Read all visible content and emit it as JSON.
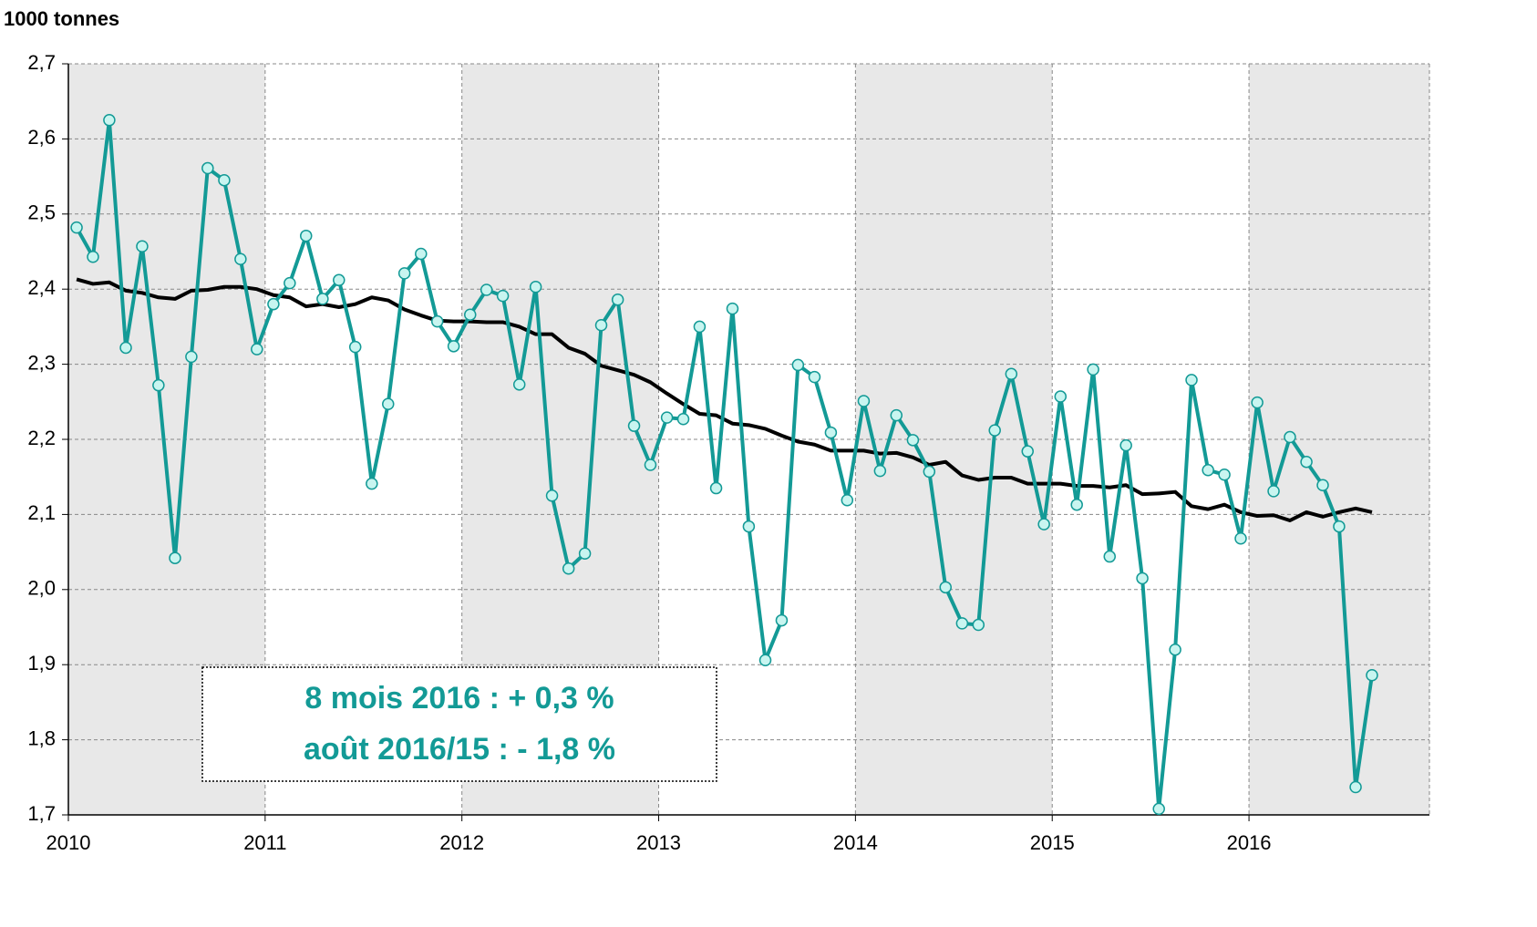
{
  "chart_data": {
    "type": "line",
    "y_axis_label": "1000 tonnes",
    "annotations": [
      "8 mois 2016 :  + 0,3 %",
      "août 2016/15 : - 1,8 %"
    ],
    "annotation_color": "#139a96",
    "x": [
      2010.042,
      2010.125,
      2010.208,
      2010.292,
      2010.375,
      2010.458,
      2010.542,
      2010.625,
      2010.708,
      2010.792,
      2010.875,
      2010.958,
      2011.042,
      2011.125,
      2011.208,
      2011.292,
      2011.375,
      2011.458,
      2011.542,
      2011.625,
      2011.708,
      2011.792,
      2011.875,
      2011.958,
      2012.042,
      2012.125,
      2012.208,
      2012.292,
      2012.375,
      2012.458,
      2012.542,
      2012.625,
      2012.708,
      2012.792,
      2012.875,
      2012.958,
      2013.042,
      2013.125,
      2013.208,
      2013.292,
      2013.375,
      2013.458,
      2013.542,
      2013.625,
      2013.708,
      2013.792,
      2013.875,
      2013.958,
      2014.042,
      2014.125,
      2014.208,
      2014.292,
      2014.375,
      2014.458,
      2014.542,
      2014.625,
      2014.708,
      2014.792,
      2014.875,
      2014.958,
      2015.042,
      2015.125,
      2015.208,
      2015.292,
      2015.375,
      2015.458,
      2015.542,
      2015.625,
      2015.708,
      2015.792,
      2015.875,
      2015.958,
      2016.042,
      2016.125,
      2016.208,
      2016.292,
      2016.375,
      2016.458,
      2016.542,
      2016.625
    ],
    "series": [
      {
        "color": "#139a96",
        "marker_fill": "#c8f5f0",
        "markers": true,
        "values": [
          2.482,
          2.443,
          2.625,
          2.322,
          2.457,
          2.272,
          2.042,
          2.31,
          2.561,
          2.545,
          2.44,
          2.32,
          2.38,
          2.408,
          2.471,
          2.387,
          2.412,
          2.323,
          2.141,
          2.247,
          2.421,
          2.447,
          2.357,
          2.324,
          2.366,
          2.399,
          2.391,
          2.273,
          2.403,
          2.125,
          2.028,
          2.048,
          2.352,
          2.386,
          2.218,
          2.166,
          2.229,
          2.227,
          2.35,
          2.135,
          2.374,
          2.084,
          1.906,
          1.959,
          2.299,
          2.283,
          2.209,
          2.119,
          2.251,
          2.158,
          2.232,
          2.199,
          2.157,
          2.003,
          1.955,
          1.953,
          2.212,
          2.287,
          2.184,
          2.087,
          2.257,
          2.113,
          2.293,
          2.044,
          2.192,
          2.015,
          1.708,
          1.92,
          2.279,
          2.159,
          2.153,
          2.068,
          2.249,
          2.131,
          2.203,
          2.17,
          2.139,
          2.084,
          1.737,
          1.886
        ]
      },
      {
        "color": "#000000",
        "markers": false,
        "values": [
          2.413,
          2.407,
          2.409,
          2.398,
          2.395,
          2.389,
          2.387,
          2.398,
          2.399,
          2.403,
          2.403,
          2.4,
          2.392,
          2.389,
          2.377,
          2.38,
          2.376,
          2.38,
          2.389,
          2.385,
          2.373,
          2.365,
          2.358,
          2.357,
          2.357,
          2.356,
          2.356,
          2.35,
          2.34,
          2.34,
          2.322,
          2.314,
          2.298,
          2.292,
          2.286,
          2.276,
          2.261,
          2.247,
          2.234,
          2.232,
          2.221,
          2.219,
          2.214,
          2.205,
          2.197,
          2.193,
          2.185,
          2.185,
          2.185,
          2.181,
          2.182,
          2.176,
          2.166,
          2.17,
          2.152,
          2.146,
          2.149,
          2.149,
          2.141,
          2.141,
          2.141,
          2.138,
          2.138,
          2.136,
          2.139,
          2.127,
          2.128,
          2.13,
          2.111,
          2.107,
          2.113,
          2.103,
          2.098,
          2.099,
          2.092,
          2.103,
          2.097,
          2.103,
          2.108,
          2.103
        ]
      }
    ],
    "xlim": [
      2010,
      2016.917
    ],
    "xticks": [
      2010,
      2011,
      2012,
      2013,
      2014,
      2015,
      2016
    ],
    "ylim": [
      1.7,
      2.7
    ],
    "yticks": [
      {
        "value": 1.7,
        "label": "1,7"
      },
      {
        "value": 1.8,
        "label": "1,8"
      },
      {
        "value": 1.9,
        "label": "1,9"
      },
      {
        "value": 2.0,
        "label": "2,0"
      },
      {
        "value": 2.1,
        "label": "2,1"
      },
      {
        "value": 2.2,
        "label": "2,2"
      },
      {
        "value": 2.3,
        "label": "2,3"
      },
      {
        "value": 2.4,
        "label": "2,4"
      },
      {
        "value": 2.5,
        "label": "2,5"
      },
      {
        "value": 2.6,
        "label": "2,6"
      },
      {
        "value": 2.7,
        "label": "2,7"
      }
    ],
    "grid": true,
    "band_colors": [
      "#e8e8e8",
      "#ffffff"
    ]
  }
}
